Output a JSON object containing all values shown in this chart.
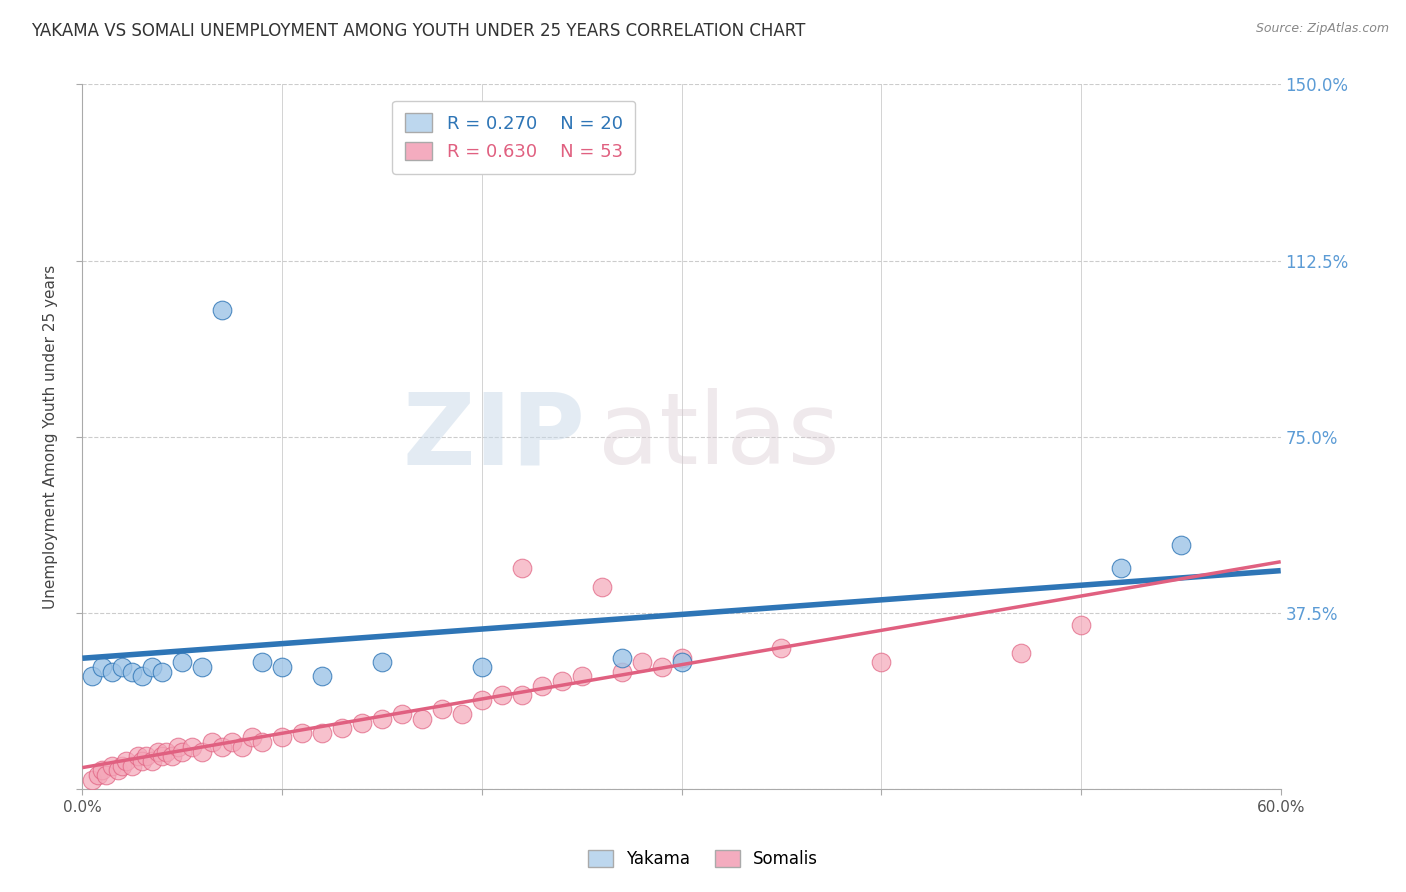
{
  "title": "YAKAMA VS SOMALI UNEMPLOYMENT AMONG YOUTH UNDER 25 YEARS CORRELATION CHART",
  "source": "Source: ZipAtlas.com",
  "xlabel": "",
  "ylabel": "Unemployment Among Youth under 25 years",
  "xlim": [
    0.0,
    0.6
  ],
  "ylim": [
    0.0,
    1.5
  ],
  "xticks": [
    0.0,
    0.1,
    0.2,
    0.3,
    0.4,
    0.5,
    0.6
  ],
  "xticklabels": [
    "0.0%",
    "",
    "",
    "",
    "",
    "",
    "60.0%"
  ],
  "yticks": [
    0.0,
    0.375,
    0.75,
    1.125,
    1.5
  ],
  "yticklabels": [
    "",
    "37.5%",
    "75.0%",
    "112.5%",
    "150.0%"
  ],
  "right_ytick_color": "#5b9bd5",
  "grid_color": "#cccccc",
  "background_color": "#ffffff",
  "watermark_zip": "ZIP",
  "watermark_atlas": "atlas",
  "yakama_R": 0.27,
  "yakama_N": 20,
  "somali_R": 0.63,
  "somali_N": 53,
  "yakama_color": "#9dc3e6",
  "somali_color": "#f4a7b9",
  "yakama_line_color": "#2e75b6",
  "somali_line_color": "#e06080",
  "legend_box_color_yakama": "#bdd7ee",
  "legend_box_color_somali": "#f4acbf",
  "yakama_x": [
    0.005,
    0.01,
    0.015,
    0.02,
    0.025,
    0.03,
    0.035,
    0.04,
    0.05,
    0.06,
    0.07,
    0.09,
    0.1,
    0.12,
    0.15,
    0.2,
    0.27,
    0.3,
    0.52,
    0.55
  ],
  "yakama_y": [
    0.24,
    0.26,
    0.25,
    0.26,
    0.25,
    0.24,
    0.26,
    0.25,
    0.27,
    0.26,
    1.02,
    0.27,
    0.26,
    0.24,
    0.27,
    0.26,
    0.28,
    0.27,
    0.47,
    0.52
  ],
  "somali_x": [
    0.005,
    0.008,
    0.01,
    0.012,
    0.015,
    0.018,
    0.02,
    0.022,
    0.025,
    0.028,
    0.03,
    0.032,
    0.035,
    0.038,
    0.04,
    0.042,
    0.045,
    0.048,
    0.05,
    0.055,
    0.06,
    0.065,
    0.07,
    0.075,
    0.08,
    0.085,
    0.09,
    0.1,
    0.11,
    0.12,
    0.13,
    0.14,
    0.15,
    0.16,
    0.17,
    0.18,
    0.19,
    0.2,
    0.21,
    0.22,
    0.23,
    0.24,
    0.25,
    0.26,
    0.27,
    0.28,
    0.29,
    0.3,
    0.22,
    0.35,
    0.4,
    0.47,
    0.5
  ],
  "somali_y": [
    0.02,
    0.03,
    0.04,
    0.03,
    0.05,
    0.04,
    0.05,
    0.06,
    0.05,
    0.07,
    0.06,
    0.07,
    0.06,
    0.08,
    0.07,
    0.08,
    0.07,
    0.09,
    0.08,
    0.09,
    0.08,
    0.1,
    0.09,
    0.1,
    0.09,
    0.11,
    0.1,
    0.11,
    0.12,
    0.12,
    0.13,
    0.14,
    0.15,
    0.16,
    0.15,
    0.17,
    0.16,
    0.19,
    0.2,
    0.2,
    0.22,
    0.23,
    0.24,
    0.43,
    0.25,
    0.27,
    0.26,
    0.28,
    0.47,
    0.3,
    0.27,
    0.29,
    0.35
  ]
}
